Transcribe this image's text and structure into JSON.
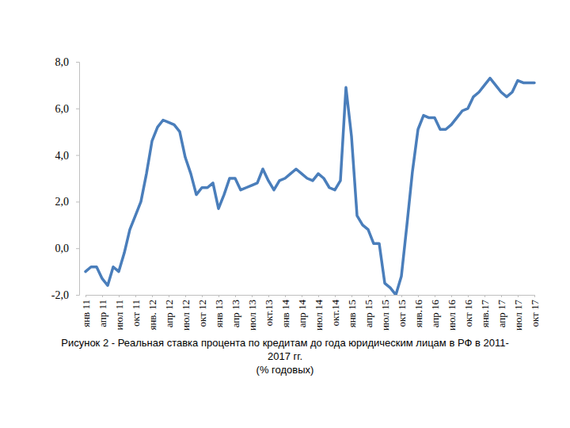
{
  "chart_data": {
    "type": "line",
    "title": "Рисунок 2 - Реальная ставка процента по кредитам до года юридическим лицам в РФ в 2011-2017 гг.",
    "subtitle": "(% годовых)",
    "categories": [
      "янв 11",
      null,
      null,
      "апр 11",
      null,
      null,
      "июл 11",
      null,
      null,
      "окт 11",
      null,
      null,
      "янв. 12",
      null,
      null,
      "апр 12",
      null,
      null,
      "июл 12",
      null,
      null,
      "окт 12",
      null,
      null,
      "янв 13",
      null,
      null,
      "апр 13",
      null,
      null,
      "июл 13",
      null,
      null,
      "окт.13",
      null,
      null,
      "янв 14",
      null,
      null,
      "апр 14",
      null,
      null,
      "июл 14",
      null,
      null,
      "окт.14",
      null,
      null,
      "янв 15",
      null,
      null,
      "апр 15",
      null,
      null,
      "июл 15",
      null,
      null,
      "окт 15",
      null,
      null,
      "янв.16",
      null,
      null,
      "апр 16",
      null,
      null,
      "июл 16",
      null,
      null,
      "окт 16",
      null,
      null,
      "янв.17",
      null,
      null,
      "апр 17",
      null,
      null,
      "июл 17",
      null,
      null,
      "окт 17"
    ],
    "values": [
      -1.0,
      -0.8,
      -0.8,
      -1.3,
      -1.6,
      -0.8,
      -1.0,
      -0.2,
      0.8,
      1.4,
      2.0,
      3.2,
      4.6,
      5.2,
      5.5,
      5.4,
      5.3,
      5.0,
      3.9,
      3.2,
      2.3,
      2.6,
      2.6,
      2.8,
      1.7,
      2.3,
      3.0,
      3.0,
      2.5,
      2.6,
      2.7,
      2.8,
      3.4,
      2.9,
      2.5,
      2.9,
      3.0,
      3.2,
      3.4,
      3.2,
      3.0,
      2.9,
      3.2,
      3.0,
      2.6,
      2.5,
      2.9,
      6.9,
      4.8,
      1.4,
      1.0,
      0.8,
      0.2,
      0.2,
      -1.5,
      -1.7,
      -2.0,
      -1.2,
      1.0,
      3.3,
      5.1,
      5.7,
      5.6,
      5.6,
      5.1,
      5.1,
      5.3,
      5.6,
      5.9,
      6.0,
      6.5,
      6.7,
      7.0,
      7.3,
      7.0,
      6.7,
      6.5,
      6.7,
      7.2,
      7.1,
      7.1,
      7.1
    ],
    "color": "#4a7ebb",
    "ylim": [
      -2,
      8
    ],
    "yticks": [
      {
        "value": -2,
        "label": "-2,0"
      },
      {
        "value": 0,
        "label": "0,0"
      },
      {
        "value": 2,
        "label": "2,0"
      },
      {
        "value": 4,
        "label": "4,0"
      },
      {
        "value": 6,
        "label": "6,0"
      },
      {
        "value": 8,
        "label": "8,0"
      }
    ],
    "grid": false
  }
}
